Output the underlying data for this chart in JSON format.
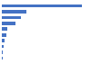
{
  "values": [
    2800,
    870,
    680,
    490,
    200,
    165,
    90,
    55,
    40,
    25
  ],
  "bar_color": "#4472c4",
  "background_color": "#ffffff",
  "grid_color": "#e0e0e0",
  "figsize": [
    1.0,
    0.71
  ],
  "dpi": 100,
  "bar_height": 0.55
}
